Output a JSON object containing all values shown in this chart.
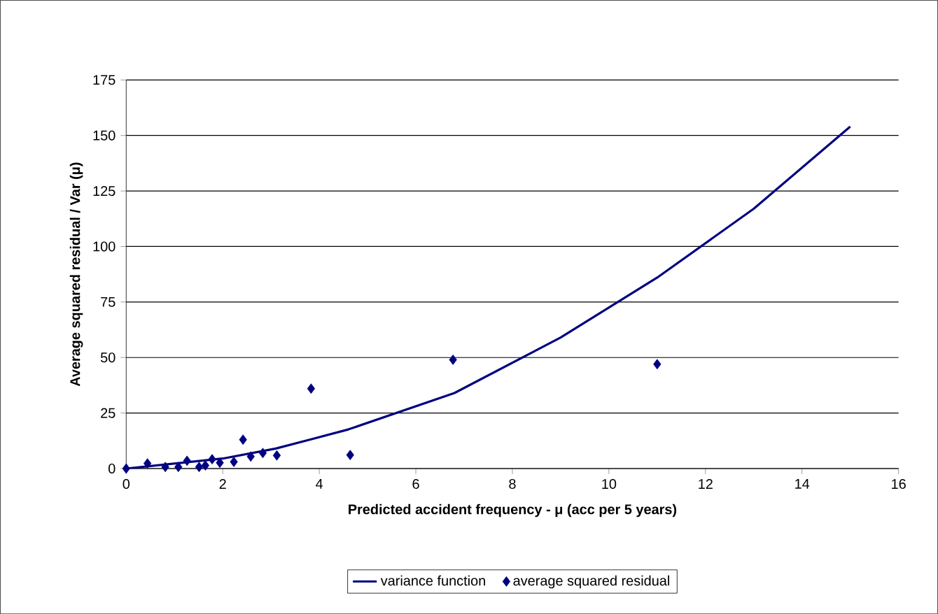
{
  "chart_data": {
    "type": "scatter",
    "xlabel": "Predicted accident frequency - μ (acc per 5 years)",
    "ylabel": "Average squared residual / Var (μ)",
    "xlim": [
      0,
      16
    ],
    "xticks": [
      0,
      2,
      4,
      6,
      8,
      10,
      12,
      14,
      16
    ],
    "ylim": [
      0,
      175
    ],
    "yticks": [
      0,
      25,
      50,
      75,
      100,
      125,
      150,
      175
    ],
    "grid": "y",
    "legend": "bottom",
    "series": [
      {
        "name": "variance function",
        "type": "line",
        "color": "#000080",
        "marker": "none",
        "line_style": "solid",
        "x": [
          0,
          2,
          3.1,
          3.8,
          4.6,
          6.8,
          9,
          11,
          13,
          15
        ],
        "values": [
          0,
          4.5,
          9,
          13,
          17.6,
          34,
          59,
          86,
          117,
          154
        ]
      },
      {
        "name": "average squared residual",
        "color": "#000080",
        "marker": "diamond",
        "x": [
          0,
          0.44,
          0.81,
          1.08,
          1.26,
          1.51,
          1.64,
          1.78,
          1.94,
          2.23,
          2.42,
          2.58,
          2.83,
          3.12,
          3.83,
          4.64,
          6.77,
          11.0
        ],
        "values": [
          0,
          2.3,
          0.7,
          0.7,
          3.5,
          0.7,
          1.4,
          4.2,
          2.6,
          3,
          13,
          5.4,
          7,
          5.9,
          36,
          6.1,
          49,
          47
        ]
      }
    ]
  }
}
